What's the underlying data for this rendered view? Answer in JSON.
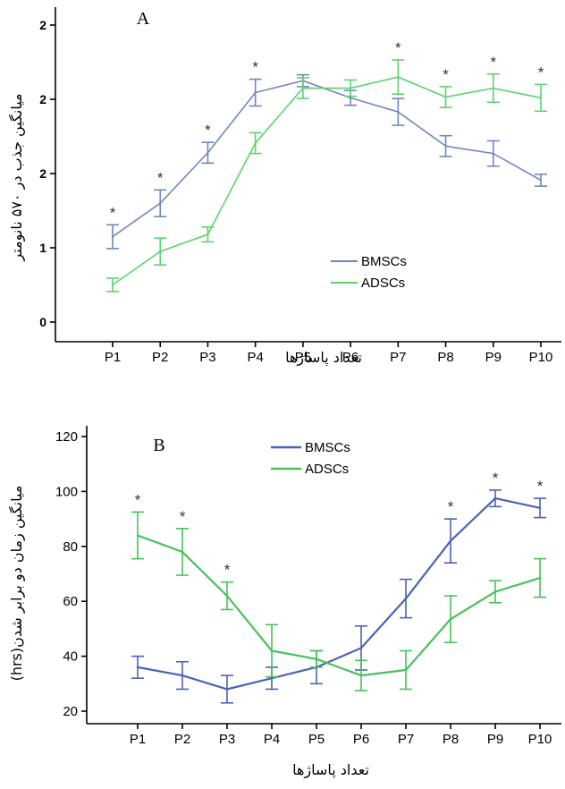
{
  "chart_data": [
    {
      "type": "line",
      "panel_label": "A",
      "ylabel": "میانگین جذب در ۵۷۰ نانومتر",
      "xlabel": "تعداد پاساژها",
      "categories": [
        "P1",
        "P2",
        "P3",
        "P4",
        "P5",
        "P6",
        "P7",
        "P8",
        "P9",
        "P10"
      ],
      "ylim": [
        0,
        2
      ],
      "yticks": [
        "0",
        "1",
        "2",
        "2",
        "2"
      ],
      "legend_position": "lower-right",
      "series": [
        {
          "name": "BMSCs",
          "color": "#6f86c0",
          "values": [
            0.575,
            0.8,
            1.14,
            1.545,
            1.625,
            1.51,
            1.415,
            1.185,
            1.135,
            0.955
          ],
          "errors": [
            0.08,
            0.09,
            0.07,
            0.09,
            0.04,
            0.05,
            0.09,
            0.07,
            0.085,
            0.04
          ]
        },
        {
          "name": "ADSCs",
          "color": "#5ed26e",
          "values": [
            0.25,
            0.475,
            0.59,
            1.205,
            1.575,
            1.575,
            1.65,
            1.515,
            1.575,
            1.51
          ],
          "errors": [
            0.045,
            0.09,
            0.05,
            0.07,
            0.07,
            0.055,
            0.115,
            0.07,
            0.095,
            0.09
          ]
        }
      ],
      "significance": [
        "*",
        "*",
        "*",
        "*",
        "",
        "",
        "*",
        "*",
        "*",
        "*"
      ]
    },
    {
      "type": "line",
      "panel_label": "B",
      "ylabel": "میانگین زمان دو برابر شدن(hrs)",
      "xlabel": "تعداد پاساژها",
      "categories": [
        "P1",
        "P2",
        "P3",
        "P4",
        "P5",
        "P6",
        "P7",
        "P8",
        "P9",
        "P10"
      ],
      "ylim": [
        20,
        120
      ],
      "yticks": [
        "20",
        "40",
        "60",
        "80",
        "100",
        "120"
      ],
      "legend_position": "top-center",
      "series": [
        {
          "name": "BMSCs",
          "color": "#4a63b6",
          "values": [
            36,
            33,
            28,
            32,
            36,
            43,
            61,
            82,
            97.5,
            94
          ],
          "errors": [
            4,
            5,
            5,
            4,
            6,
            8,
            7,
            8,
            3,
            3.5
          ]
        },
        {
          "name": "ADSCs",
          "color": "#45c25a",
          "values": [
            84,
            78,
            62,
            42,
            39,
            33,
            35,
            53.5,
            63.5,
            68.5
          ],
          "errors": [
            8.5,
            8.5,
            5,
            9.5,
            3,
            5.5,
            7,
            8.5,
            4,
            7
          ]
        }
      ],
      "significance": [
        "*",
        "*",
        "*",
        "",
        "",
        "",
        "",
        "*",
        "*",
        "*"
      ]
    }
  ]
}
